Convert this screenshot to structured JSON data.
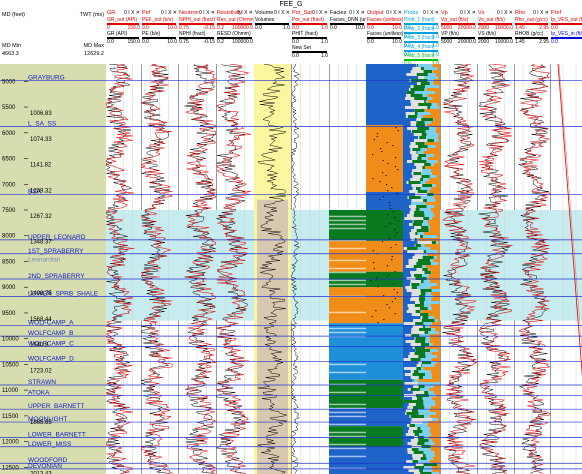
{
  "window": {
    "title": "FEE_G"
  },
  "depth_header": {
    "md_label": "MD (feet)",
    "twt_label": "TWT (ms)",
    "md_min_label": "MD Min",
    "md_min": "4663.3",
    "md_max_label": "MD Max",
    "md_max": "12629.2"
  },
  "depth_axis": {
    "min": 4663.3,
    "max": 12629.2,
    "ticks": [
      {
        "md": "5000",
        "twt": ""
      },
      {
        "md": "5500",
        "twt": "1006.83"
      },
      {
        "md": "6000",
        "twt": "1074.33"
      },
      {
        "md": "6500",
        "twt": "1141.82"
      },
      {
        "md": "7000",
        "twt": "1209.32"
      },
      {
        "md": "7500",
        "twt": "1267.32"
      },
      {
        "md": "8000",
        "twt": "1348.37"
      },
      {
        "md": "8500",
        "twt": ""
      },
      {
        "md": "9000",
        "twt": "1498.75"
      },
      {
        "md": "9500",
        "twt": "1568.44"
      },
      {
        "md": "10000",
        "twt": "1640.8"
      },
      {
        "md": "10500",
        "twt": "1723.02"
      },
      {
        "md": "11000",
        "twt": ""
      },
      {
        "md": "11500",
        "twt": "1865.65"
      },
      {
        "md": "12000",
        "twt": ""
      },
      {
        "md": "12500",
        "twt": "2013.43"
      }
    ]
  },
  "formation_tops": [
    {
      "name": "GRAYBURG",
      "md": 4980
    },
    {
      "name": "L_SA_SS",
      "md": 5880
    },
    {
      "name": "BSA",
      "md": 7200
    },
    {
      "name": "UPPER_LEONARD",
      "md": 8080
    },
    {
      "name": "1ST_SPRABERRY",
      "md": 8350
    },
    {
      "name": "Leonardian",
      "md": "8520"
    },
    {
      "name": "2ND_SPRABERRY",
      "md": 8840
    },
    {
      "name": "LOWER_SPRB_SHALE",
      "md": 9180
    },
    {
      "name": "WOLFCAMP_A",
      "md": 9740
    },
    {
      "name": "WOLFCAMP_B",
      "md": 9950
    },
    {
      "name": "WOLFCAMP_C",
      "md": 10150
    },
    {
      "name": "WOLFCAMP_D",
      "md": 10440
    },
    {
      "name": "STRAWN",
      "md": 10900
    },
    {
      "name": "ATOKA",
      "md": 11100
    },
    {
      "name": "UPPER_BARNETT",
      "md": 11370
    },
    {
      "name": "MOONLIGHT",
      "md": 11620
    },
    {
      "name": "LOWER_BARNETT",
      "md": 11920
    },
    {
      "name": "LOWER_MISS",
      "md": 12100
    },
    {
      "name": "WOODFORD",
      "md": 12420
    },
    {
      "name": "DEVONIAN",
      "md": 12530
    }
  ],
  "zone_band": {
    "top_md": 7500,
    "bottom_md": 9650,
    "color": "#c6ecef"
  },
  "controls": {
    "glyphs": "0 I X ✕"
  },
  "tracks": [
    {
      "id": "gr",
      "title": "GR",
      "curves": [
        {
          "name": "GR_out (API)",
          "color": "#e00000",
          "min": "0",
          "max": "150.0"
        },
        {
          "name": "GR (API)",
          "color": "#000000",
          "min": "0.0",
          "max": "150.0"
        }
      ]
    },
    {
      "id": "pef",
      "title": "Pef",
      "curves": [
        {
          "name": "PEF_out (b/e)",
          "color": "#e00000",
          "min": "0.0",
          "max": "10.0"
        },
        {
          "name": "PE (b/e)",
          "color": "#000000",
          "min": "0.0",
          "max": "10.0"
        }
      ]
    },
    {
      "id": "neutron",
      "title": "Neutron",
      "curves": [
        {
          "name": "NPHI_out (fract)",
          "color": "#e00000",
          "min": "0.75",
          "max": "-0.15"
        },
        {
          "name": "NPHI (fract)",
          "color": "#000000",
          "min": "0.75",
          "max": "-0.15"
        }
      ]
    },
    {
      "id": "resist",
      "title": "Resistivity",
      "curves": [
        {
          "name": "Res_out (Ohmm)",
          "color": "#e00000",
          "min": "0.2",
          "max": "100000.0"
        },
        {
          "name": "RESD (Ohmm)",
          "color": "#000000",
          "min": "0.2",
          "max": "100000.0"
        }
      ]
    },
    {
      "id": "volumes",
      "title": "Volume",
      "curves": [
        {
          "name": "Volumes",
          "color": "#000000",
          "min": "0.0",
          "max": "1.0"
        }
      ]
    },
    {
      "id": "porsat",
      "title": "Por_Sat",
      "curves": [
        {
          "name": "Por_out (fract)",
          "color": "#e00000",
          "min": "0.0",
          "max": "1.0"
        },
        {
          "name": "PHIT (fract)",
          "color": "#000000",
          "min": "0.0",
          "max": "1.0"
        },
        {
          "name": "New Set",
          "color": "#000000",
          "min": "0.0",
          "max": "1.0"
        }
      ]
    },
    {
      "id": "facies",
      "title": "Facies",
      "curves": [
        {
          "name": "Facies_DNN (unitless)",
          "color": "#000000",
          "min": "0.0",
          "max": "10.0"
        }
      ]
    },
    {
      "id": "output",
      "title": "Output",
      "curves": [
        {
          "name": "Facies (unitless)",
          "color": "#e00000",
          "min": "0.0",
          "max": "10.0"
        },
        {
          "name": "Facies (unitless)",
          "color": "#000000",
          "min": "0.0",
          "max": "10.0"
        }
      ]
    },
    {
      "id": "probs",
      "title": "Probs",
      "curves": [
        {
          "name": "Prob_1 (fract)",
          "color": "#00a0e0",
          "min": "0.0",
          "max": "1.0"
        },
        {
          "name": "Prob_2 (fract)",
          "color": "#00a0e0",
          "min": "0.0",
          "max": "1.0"
        },
        {
          "name": "Prob_3 (fract)",
          "color": "#00a0e0",
          "min": "0.0",
          "max": "1.0"
        },
        {
          "name": "Prob_4 (fract)",
          "color": "#00a0e0",
          "min": "0.0",
          "max": "1.0"
        },
        {
          "name": "Prob_5 (fract)",
          "color": "#00c000",
          "min": "0.0",
          "max": "1.0"
        }
      ]
    },
    {
      "id": "vp",
      "title": "Vp",
      "curves": [
        {
          "name": "Vp_out (ft/s)",
          "color": "#e00000",
          "min": "5000",
          "max": "20000.0"
        },
        {
          "name": "VP (ft/s)",
          "color": "#000000",
          "min": "5000",
          "max": "20000.0"
        }
      ]
    },
    {
      "id": "vs",
      "title": "Vs",
      "curves": [
        {
          "name": "Vs_out (ft/s)",
          "color": "#e00000",
          "min": "2000",
          "max": "10000.0"
        },
        {
          "name": "VS (ft/s)",
          "color": "#000000",
          "min": "2000",
          "max": "10000.0"
        }
      ]
    },
    {
      "id": "rho",
      "title": "Rho",
      "curves": [
        {
          "name": "Rho_out (g/cc)",
          "color": "#e00000",
          "min": "1.45",
          "max": "2.95"
        },
        {
          "name": "RHOB (g/cc)",
          "color": "#000000",
          "min": "1.45",
          "max": "2.95"
        }
      ]
    },
    {
      "id": "prefs",
      "title": "Pref",
      "curves": [
        {
          "name": "Ip_VES_out (ft/s)",
          "color": "#e00000",
          "min": "0.0",
          "max": "20000.0"
        },
        {
          "name": "Ip_VES_in (ft/s)",
          "color": "#0000e0",
          "min": "0.0",
          "max": "20000.0"
        }
      ]
    }
  ]
}
